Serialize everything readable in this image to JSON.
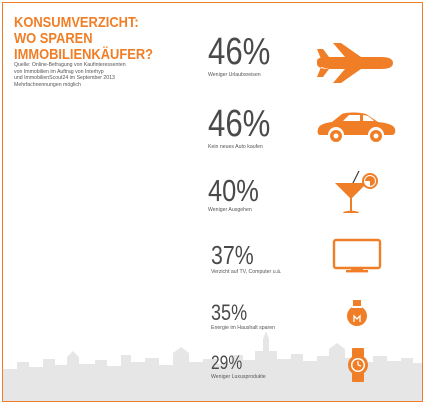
{
  "title": [
    "KONSUMVERZICHT:",
    "WO SPAREN",
    "IMMOBILIENKÄUFER?"
  ],
  "source_lines": [
    "Quelle: Online-Befragung von Kaufinteressenten",
    "von Immobilien im Auftrag von Interhyp",
    "und ImmobilienScout24 im September 2013",
    "Mehrfachnennungen möglich"
  ],
  "colors": {
    "accent": "#f07e26",
    "text": "#4a4a4a",
    "skyline": "#e6e6e6"
  },
  "chart_data": {
    "type": "table",
    "title": "KONSUMVERZICHT: WO SPAREN IMMOBILIENKÄUFER?",
    "rows": [
      {
        "value": 46,
        "display": "46%",
        "label": "Weniger Urlaubsreisen",
        "icon": "airplane-icon"
      },
      {
        "value": 46,
        "display": "46%",
        "label": "Kein neues Auto kaufen",
        "icon": "car-icon"
      },
      {
        "value": 40,
        "display": "40%",
        "label": "Weniger Ausgehen",
        "icon": "cocktail-icon"
      },
      {
        "value": 37,
        "display": "37%",
        "label": "Verzicht auf TV, Computer u.ä.",
        "icon": "tv-icon"
      },
      {
        "value": 35,
        "display": "35%",
        "label": "Energie im Haushalt sparen",
        "icon": "lightbulb-icon"
      },
      {
        "value": 29,
        "display": "29%",
        "label": "Weniger Luxusprodukte",
        "icon": "watch-icon"
      }
    ]
  }
}
